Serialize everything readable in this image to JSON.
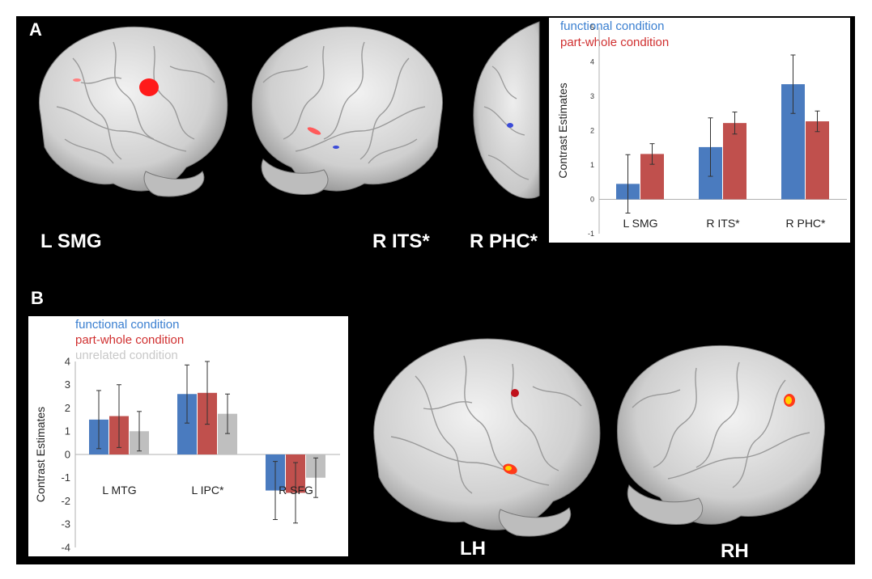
{
  "panels": {
    "a_letter": "A",
    "b_letter": "B",
    "a_labels": [
      "L SMG",
      "R ITS*",
      "R PHC*"
    ],
    "b_labels": [
      "LH",
      "RH"
    ]
  },
  "colors": {
    "functional": "#4a7bbf",
    "part_whole": "#c0504d",
    "unrelated": "#bfbfbf",
    "legend_functional_text": "#3a7fd0",
    "legend_part_text": "#d03030",
    "legend_unrelated_text": "#c8c8c8",
    "activation_red": "#ff1a1a",
    "activation_yellow": "#ffd200",
    "brain": "#d8d8d8"
  },
  "icons": [
    "brain-lateral-left-image",
    "brain-lateral-right-image",
    "brain-ventral-image",
    "brain-lh-image",
    "brain-rh-image"
  ],
  "chart_data": [
    {
      "type": "bar",
      "legend": [
        "functional condition",
        "part-whole condition"
      ],
      "ylabel": "Contrast Estimates",
      "categories": [
        "L SMG",
        "R ITS*",
        "R PHC*"
      ],
      "ylim": [
        -1,
        5
      ],
      "yticks": [
        "5",
        "4",
        "3",
        "2",
        "1",
        "0",
        "-1"
      ],
      "series": [
        {
          "name": "functional condition",
          "values": [
            0.45,
            1.52,
            3.35
          ],
          "errors": [
            0.85,
            0.85,
            0.85
          ]
        },
        {
          "name": "part-whole condition",
          "values": [
            1.32,
            2.22,
            2.27
          ],
          "errors": [
            0.3,
            0.32,
            0.3
          ]
        }
      ],
      "grid": false,
      "legend_position": "top-left"
    },
    {
      "type": "bar",
      "legend": [
        "functional condition",
        "part-whole condition",
        "unrelated condition"
      ],
      "ylabel": "Contrast Estimates",
      "categories": [
        "L MTG",
        "L IPC*",
        "R SFG"
      ],
      "ylim": [
        -4,
        4
      ],
      "yticks": [
        "4",
        "3",
        "2",
        "1",
        "0",
        "-1",
        "-2",
        "-3",
        "-4"
      ],
      "series": [
        {
          "name": "functional condition",
          "values": [
            1.5,
            2.6,
            -1.55
          ],
          "errors": [
            1.25,
            1.25,
            1.25
          ]
        },
        {
          "name": "part-whole condition",
          "values": [
            1.65,
            2.65,
            -1.65
          ],
          "errors": [
            1.35,
            1.35,
            1.3
          ]
        },
        {
          "name": "unrelated condition",
          "values": [
            1.0,
            1.75,
            -1.0
          ],
          "errors": [
            0.85,
            0.85,
            0.85
          ]
        }
      ],
      "grid": false,
      "legend_position": "top-left"
    }
  ]
}
